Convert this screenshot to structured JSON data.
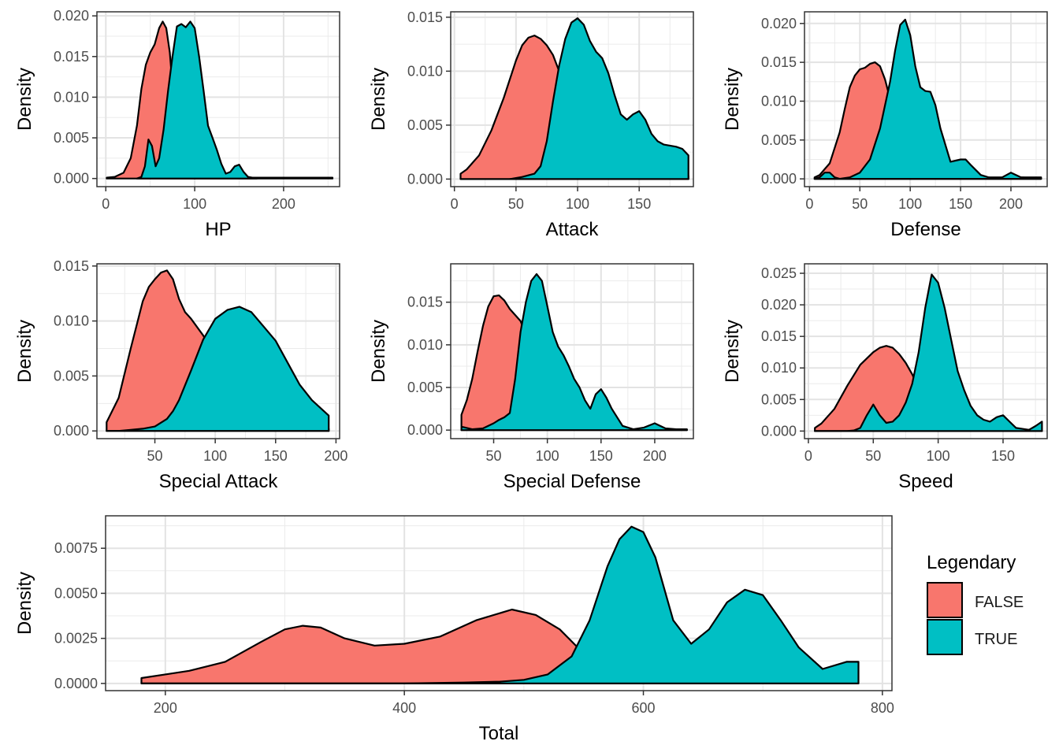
{
  "legend": {
    "title": "Legendary",
    "items": [
      {
        "label": "FALSE",
        "color": "#F8766D"
      },
      {
        "label": "TRUE",
        "color": "#00BFC4"
      }
    ]
  },
  "chart_data": [
    {
      "type": "area",
      "xlabel": "HP",
      "ylabel": "Density",
      "xlim": [
        -10,
        263
      ],
      "ylim": [
        -0.001,
        0.0205
      ],
      "xticks": [
        0,
        100,
        200
      ],
      "yticks": [
        0,
        0.005,
        0.01,
        0.015,
        0.02
      ],
      "ytick_labels": [
        "0.000",
        "0.005",
        "0.010",
        "0.015",
        "0.020"
      ],
      "series": [
        {
          "name": "FALSE",
          "color": "#F8766D",
          "x": [
            1,
            10,
            20,
            28,
            35,
            40,
            45,
            50,
            55,
            60,
            64,
            68,
            72,
            76,
            80,
            85,
            90,
            100,
            110,
            120,
            130,
            140,
            150,
            160,
            180,
            200,
            230,
            255
          ],
          "y": [
            0.0001,
            0.0002,
            0.0007,
            0.0025,
            0.0065,
            0.011,
            0.014,
            0.0155,
            0.0165,
            0.0185,
            0.0193,
            0.0185,
            0.0155,
            0.01,
            0.006,
            0.0025,
            0.0009,
            0.0002,
            0.0001,
            0.0001,
            0.0001,
            0.0001,
            0.0001,
            0.0001,
            0.0001,
            0.0001,
            0.0001,
            0.0001
          ]
        },
        {
          "name": "TRUE",
          "color": "#00BFC4",
          "x": [
            35,
            40,
            44,
            48,
            52,
            56,
            60,
            65,
            70,
            75,
            80,
            85,
            90,
            95,
            100,
            105,
            110,
            115,
            120,
            125,
            130,
            135,
            140,
            145,
            150,
            155,
            160,
            170
          ],
          "y": [
            0,
            0.0002,
            0.0015,
            0.0048,
            0.004,
            0.0015,
            0.0025,
            0.006,
            0.0108,
            0.015,
            0.0187,
            0.019,
            0.0186,
            0.0193,
            0.0185,
            0.015,
            0.0108,
            0.0065,
            0.005,
            0.0035,
            0.0018,
            0.0006,
            0.0008,
            0.0015,
            0.0017,
            0.0008,
            0.0002,
            0
          ]
        }
      ]
    },
    {
      "type": "area",
      "xlabel": "Attack",
      "ylabel": "Density",
      "xlim": [
        -3,
        194
      ],
      "ylim": [
        -0.0007,
        0.0155
      ],
      "xticks": [
        0,
        50,
        100,
        150
      ],
      "yticks": [
        0,
        0.005,
        0.01,
        0.015
      ],
      "ytick_labels": [
        "0.000",
        "0.005",
        "0.010",
        "0.015"
      ],
      "series": [
        {
          "name": "FALSE",
          "color": "#F8766D",
          "x": [
            5,
            10,
            20,
            30,
            40,
            50,
            55,
            60,
            65,
            70,
            75,
            80,
            85,
            90,
            100,
            110,
            120,
            130,
            140,
            150,
            160,
            170,
            180,
            190
          ],
          "y": [
            0.0005,
            0.0009,
            0.0022,
            0.0045,
            0.0075,
            0.011,
            0.0124,
            0.0131,
            0.0133,
            0.013,
            0.0124,
            0.0115,
            0.01,
            0.0078,
            0.0038,
            0.0014,
            0.0007,
            0.0005,
            0.0004,
            0.0003,
            0.0003,
            0.0003,
            0.0003,
            0.0003
          ]
        },
        {
          "name": "TRUE",
          "color": "#00BFC4",
          "x": [
            45,
            55,
            65,
            70,
            75,
            80,
            85,
            90,
            95,
            100,
            105,
            110,
            115,
            120,
            125,
            130,
            135,
            140,
            145,
            150,
            155,
            160,
            165,
            170,
            175,
            180,
            185,
            190
          ],
          "y": [
            0,
            0.0002,
            0.0005,
            0.0012,
            0.0035,
            0.0072,
            0.0105,
            0.013,
            0.0145,
            0.0149,
            0.0143,
            0.0128,
            0.0118,
            0.0112,
            0.0098,
            0.0078,
            0.006,
            0.0055,
            0.006,
            0.0063,
            0.0055,
            0.0042,
            0.0035,
            0.0032,
            0.0031,
            0.003,
            0.0028,
            0.0022
          ]
        }
      ]
    },
    {
      "type": "area",
      "xlabel": "Defense",
      "ylabel": "Density",
      "xlim": [
        -5,
        236
      ],
      "ylim": [
        -0.001,
        0.0215
      ],
      "xticks": [
        0,
        50,
        100,
        150,
        200
      ],
      "yticks": [
        0,
        0.005,
        0.01,
        0.015,
        0.02
      ],
      "ytick_labels": [
        "0.000",
        "0.005",
        "0.010",
        "0.015",
        "0.020"
      ],
      "series": [
        {
          "name": "FALSE",
          "color": "#F8766D",
          "x": [
            5,
            10,
            20,
            30,
            35,
            40,
            45,
            50,
            55,
            60,
            65,
            70,
            75,
            80,
            85,
            90,
            100,
            110,
            120,
            130,
            140,
            150,
            160,
            180,
            200,
            230
          ],
          "y": [
            0.0002,
            0.0005,
            0.002,
            0.006,
            0.009,
            0.0118,
            0.0133,
            0.0141,
            0.0143,
            0.0148,
            0.015,
            0.0145,
            0.0128,
            0.0103,
            0.0078,
            0.005,
            0.0015,
            0.0005,
            0.0002,
            0.0002,
            0.0002,
            0.0002,
            0.0002,
            0.0002,
            0.0002,
            0.0002
          ]
        },
        {
          "name": "TRUE",
          "color": "#00BFC4",
          "x": [
            5,
            10,
            15,
            20,
            25,
            30,
            40,
            50,
            60,
            70,
            80,
            85,
            90,
            95,
            100,
            105,
            110,
            115,
            120,
            125,
            130,
            140,
            150,
            155,
            160,
            170,
            180,
            190,
            200,
            210,
            230
          ],
          "y": [
            0,
            0.0002,
            0.0008,
            0.0008,
            0.0002,
            0,
            0.0002,
            0.0008,
            0.0025,
            0.0065,
            0.0125,
            0.0165,
            0.0198,
            0.0205,
            0.0185,
            0.0145,
            0.0118,
            0.0113,
            0.0112,
            0.0095,
            0.0065,
            0.0022,
            0.0025,
            0.0025,
            0.0018,
            0.0005,
            0.0001,
            0.0001,
            0.0008,
            0.0002,
            0
          ]
        }
      ]
    },
    {
      "type": "area",
      "xlabel": "Special Attack",
      "ylabel": "Density",
      "xlim": [
        2,
        203
      ],
      "ylim": [
        -0.0007,
        0.0152
      ],
      "xticks": [
        50,
        100,
        150,
        200
      ],
      "yticks": [
        0,
        0.005,
        0.01,
        0.015
      ],
      "ytick_labels": [
        "0.000",
        "0.005",
        "0.010",
        "0.015"
      ],
      "series": [
        {
          "name": "FALSE",
          "color": "#F8766D",
          "x": [
            10,
            20,
            30,
            40,
            45,
            50,
            55,
            60,
            65,
            70,
            75,
            80,
            90,
            100,
            110,
            120,
            130,
            140,
            150,
            160,
            170,
            180,
            194
          ],
          "y": [
            0.0008,
            0.003,
            0.0075,
            0.0118,
            0.0131,
            0.0138,
            0.0144,
            0.0146,
            0.0138,
            0.012,
            0.0108,
            0.0102,
            0.0087,
            0.0068,
            0.0035,
            0.0012,
            0.0004,
            0.0002,
            0.0002,
            0.0002,
            0.0002,
            0.0002,
            0.0002
          ]
        },
        {
          "name": "TRUE",
          "color": "#00BFC4",
          "x": [
            10,
            20,
            30,
            40,
            50,
            60,
            65,
            70,
            80,
            90,
            100,
            110,
            120,
            130,
            140,
            150,
            160,
            170,
            180,
            194
          ],
          "y": [
            0,
            0,
            0.0001,
            0.0002,
            0.0004,
            0.0011,
            0.0018,
            0.0028,
            0.0055,
            0.0083,
            0.0102,
            0.011,
            0.0113,
            0.0108,
            0.0095,
            0.0082,
            0.0062,
            0.0042,
            0.0028,
            0.0014
          ]
        }
      ]
    },
    {
      "type": "area",
      "xlabel": "Special Defense",
      "ylabel": "Density",
      "xlim": [
        10,
        236
      ],
      "ylim": [
        -0.001,
        0.0195
      ],
      "xticks": [
        50,
        100,
        150,
        200
      ],
      "yticks": [
        0,
        0.005,
        0.01,
        0.015
      ],
      "ytick_labels": [
        "0.000",
        "0.005",
        "0.010",
        "0.015"
      ],
      "series": [
        {
          "name": "FALSE",
          "color": "#F8766D",
          "x": [
            20,
            25,
            30,
            35,
            40,
            45,
            50,
            55,
            60,
            65,
            70,
            75,
            80,
            85,
            90,
            95,
            100,
            110,
            120,
            130,
            140,
            150,
            160,
            180,
            200,
            230
          ],
          "y": [
            0.0018,
            0.0035,
            0.006,
            0.0092,
            0.0122,
            0.0145,
            0.0157,
            0.0158,
            0.0152,
            0.0142,
            0.0135,
            0.0128,
            0.0112,
            0.0085,
            0.0055,
            0.003,
            0.0015,
            0.0004,
            0.0002,
            0.0001,
            0.0001,
            0.0001,
            0.0001,
            0.0001,
            0.0001,
            0.0001
          ]
        },
        {
          "name": "TRUE",
          "color": "#00BFC4",
          "x": [
            20,
            30,
            40,
            50,
            55,
            60,
            65,
            70,
            75,
            80,
            85,
            90,
            95,
            100,
            105,
            110,
            115,
            120,
            125,
            130,
            135,
            140,
            145,
            150,
            155,
            160,
            170,
            180,
            190,
            200,
            210,
            230
          ],
          "y": [
            0.0004,
            0.0001,
            0.0002,
            0.0008,
            0.0012,
            0.0015,
            0.002,
            0.006,
            0.0115,
            0.015,
            0.0175,
            0.0183,
            0.0175,
            0.0145,
            0.0115,
            0.0098,
            0.0088,
            0.0075,
            0.006,
            0.005,
            0.0035,
            0.0025,
            0.0042,
            0.0048,
            0.0038,
            0.0025,
            0.0005,
            0.0001,
            0.0003,
            0.0008,
            0.0002,
            0
          ]
        }
      ]
    },
    {
      "type": "area",
      "xlabel": "Speed",
      "ylabel": "Density",
      "xlim": [
        -3,
        184
      ],
      "ylim": [
        -0.0012,
        0.0265
      ],
      "xticks": [
        0,
        50,
        100,
        150
      ],
      "yticks": [
        0,
        0.005,
        0.01,
        0.015,
        0.02,
        0.025
      ],
      "ytick_labels": [
        "0.000",
        "0.005",
        "0.010",
        "0.015",
        "0.020",
        "0.025"
      ],
      "series": [
        {
          "name": "FALSE",
          "color": "#F8766D",
          "x": [
            5,
            10,
            20,
            30,
            40,
            50,
            55,
            60,
            65,
            70,
            75,
            80,
            85,
            90,
            95,
            100,
            110,
            120,
            130,
            140,
            150,
            160,
            170,
            180
          ],
          "y": [
            0.0005,
            0.0012,
            0.0035,
            0.0072,
            0.0105,
            0.0125,
            0.0132,
            0.0135,
            0.0132,
            0.0122,
            0.0108,
            0.009,
            0.0068,
            0.0045,
            0.0025,
            0.001,
            0.0003,
            0.0002,
            0.0002,
            0.0002,
            0.0002,
            0.0002,
            0.0002,
            0.0002
          ]
        },
        {
          "name": "TRUE",
          "color": "#00BFC4",
          "x": [
            5,
            20,
            30,
            35,
            40,
            45,
            50,
            55,
            60,
            65,
            70,
            75,
            80,
            85,
            90,
            95,
            100,
            105,
            110,
            115,
            120,
            125,
            130,
            135,
            140,
            145,
            150,
            155,
            160,
            170,
            175,
            180
          ],
          "y": [
            0,
            0,
            0,
            0.0001,
            0.0005,
            0.0025,
            0.0042,
            0.0025,
            0.0013,
            0.0015,
            0.0025,
            0.0045,
            0.0075,
            0.0125,
            0.0195,
            0.0248,
            0.0235,
            0.0195,
            0.0145,
            0.0095,
            0.0065,
            0.004,
            0.0025,
            0.0018,
            0.0015,
            0.0022,
            0.0025,
            0.0015,
            0.0005,
            0.0002,
            0.0008,
            0.0015
          ]
        }
      ]
    },
    {
      "type": "area",
      "xlabel": "Total",
      "ylabel": "Density",
      "xlim": [
        150,
        808
      ],
      "ylim": [
        -0.0004,
        0.0093
      ],
      "xticks": [
        200,
        400,
        600,
        800
      ],
      "yticks": [
        0,
        0.0025,
        0.005,
        0.0075
      ],
      "ytick_labels": [
        "0.0000",
        "0.0025",
        "0.0050",
        "0.0075"
      ],
      "series": [
        {
          "name": "FALSE",
          "color": "#F8766D",
          "x": [
            180,
            200,
            220,
            250,
            280,
            300,
            315,
            330,
            350,
            375,
            400,
            430,
            460,
            490,
            510,
            530,
            545,
            560,
            580,
            600,
            650,
            700,
            780
          ],
          "y": [
            0.0003,
            0.0005,
            0.0007,
            0.0012,
            0.0023,
            0.003,
            0.0032,
            0.0031,
            0.0025,
            0.0021,
            0.0022,
            0.0026,
            0.0035,
            0.0041,
            0.0038,
            0.003,
            0.002,
            0.001,
            0.0004,
            0.0001,
            0,
            0,
            0
          ]
        },
        {
          "name": "TRUE",
          "color": "#00BFC4",
          "x": [
            180,
            300,
            400,
            450,
            480,
            500,
            520,
            540,
            555,
            570,
            580,
            590,
            600,
            610,
            625,
            640,
            655,
            670,
            685,
            700,
            715,
            730,
            750,
            770,
            780
          ],
          "y": [
            0,
            0,
            0,
            5e-05,
            0.0001,
            0.0002,
            0.0005,
            0.0015,
            0.0035,
            0.0065,
            0.008,
            0.0087,
            0.0084,
            0.007,
            0.0035,
            0.0022,
            0.003,
            0.0045,
            0.0052,
            0.0049,
            0.0035,
            0.002,
            0.0008,
            0.0012,
            0.0012
          ]
        }
      ]
    }
  ]
}
